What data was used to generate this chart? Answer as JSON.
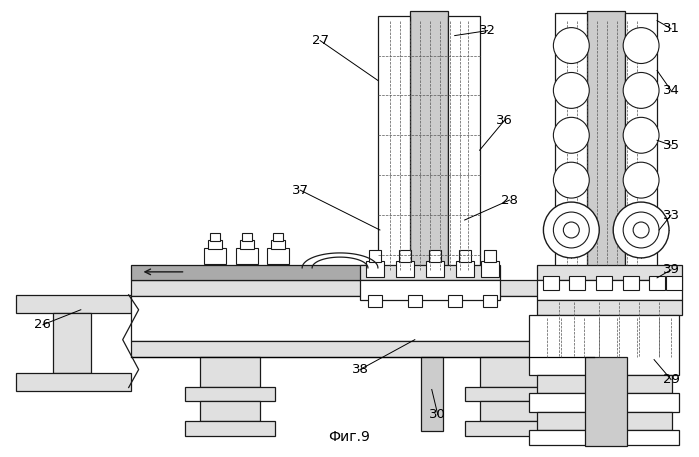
{
  "bg_color": "#ffffff",
  "line_color": "#1a1a1a",
  "gray_light": "#cccccc",
  "gray_mid": "#aaaaaa",
  "gray_fill": "#e0e0e0",
  "gray_dark": "#999999",
  "title": "Фиг.9",
  "lw": 0.9
}
